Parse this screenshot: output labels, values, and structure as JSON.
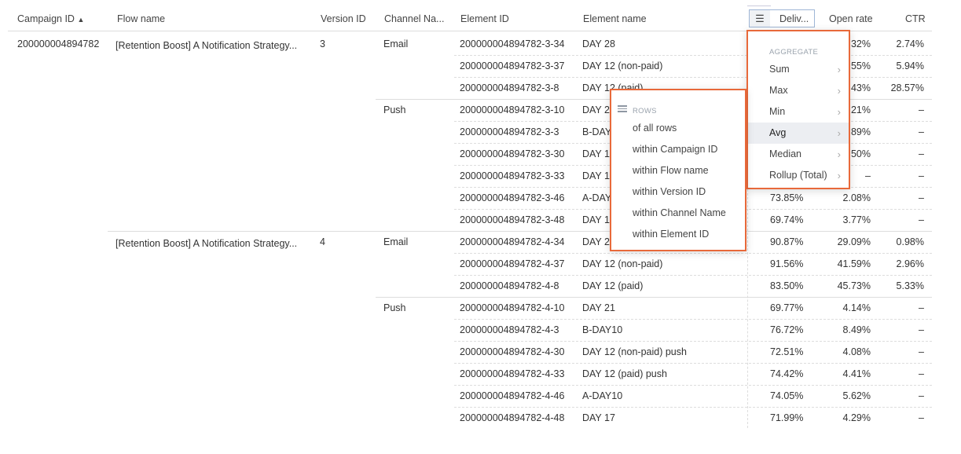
{
  "columns": {
    "campaign_id": "Campaign ID",
    "flow_name": "Flow name",
    "version_id": "Version ID",
    "channel_name": "Channel Na...",
    "element_id": "Element ID",
    "element_name": "Element name",
    "delivered": "Deliv...",
    "open_rate": "Open rate",
    "ctr": "CTR"
  },
  "sort_indicator": "▲",
  "campaign": "200000004894782",
  "versions": [
    {
      "flow_name": "[Retention Boost] A Notification Strategy...",
      "version_id": "3",
      "channels": [
        {
          "name": "Email",
          "start": 0
        },
        {
          "name": "Push",
          "start": 3
        }
      ]
    },
    {
      "flow_name": "[Retention Boost] A Notification Strategy...",
      "version_id": "4",
      "channels": [
        {
          "name": "Email",
          "start": 9
        },
        {
          "name": "Push",
          "start": 12
        }
      ]
    }
  ],
  "rows": [
    {
      "element_id": "200000004894782-3-34",
      "element_name": "DAY 28",
      "delivered": "",
      "open_rate": ".32%",
      "ctr": "2.74%"
    },
    {
      "element_id": "200000004894782-3-37",
      "element_name": "DAY 12 (non-paid)",
      "delivered": "",
      "open_rate": ".55%",
      "ctr": "5.94%"
    },
    {
      "element_id": "200000004894782-3-8",
      "element_name": "DAY 12 (paid)",
      "delivered": "",
      "open_rate": ".43%",
      "ctr": "28.57%"
    },
    {
      "element_id": "200000004894782-3-10",
      "element_name": "DAY 2",
      "delivered": "",
      "open_rate": ".21%",
      "ctr": "–"
    },
    {
      "element_id": "200000004894782-3-3",
      "element_name": "B-DAY",
      "delivered": "",
      "open_rate": ".89%",
      "ctr": "–"
    },
    {
      "element_id": "200000004894782-3-30",
      "element_name": "DAY 1",
      "delivered": "",
      "open_rate": ".50%",
      "ctr": "–"
    },
    {
      "element_id": "200000004894782-3-33",
      "element_name": "DAY 1",
      "delivered": "",
      "open_rate": "–",
      "ctr": "–"
    },
    {
      "element_id": "200000004894782-3-46",
      "element_name": "A-DAY",
      "delivered": "73.85%",
      "open_rate": "2.08%",
      "ctr": "–"
    },
    {
      "element_id": "200000004894782-3-48",
      "element_name": "DAY 1",
      "delivered": "69.74%",
      "open_rate": "3.77%",
      "ctr": "–"
    },
    {
      "element_id": "200000004894782-4-34",
      "element_name": "DAY 2",
      "delivered": "90.87%",
      "open_rate": "29.09%",
      "ctr": "0.98%"
    },
    {
      "element_id": "200000004894782-4-37",
      "element_name": "DAY 12 (non-paid)",
      "delivered": "91.56%",
      "open_rate": "41.59%",
      "ctr": "2.96%"
    },
    {
      "element_id": "200000004894782-4-8",
      "element_name": "DAY 12 (paid)",
      "delivered": "83.50%",
      "open_rate": "45.73%",
      "ctr": "5.33%"
    },
    {
      "element_id": "200000004894782-4-10",
      "element_name": "DAY 21",
      "delivered": "69.77%",
      "open_rate": "4.14%",
      "ctr": "–"
    },
    {
      "element_id": "200000004894782-4-3",
      "element_name": "B-DAY10",
      "delivered": "76.72%",
      "open_rate": "8.49%",
      "ctr": "–"
    },
    {
      "element_id": "200000004894782-4-30",
      "element_name": "DAY 12 (non-paid) push",
      "delivered": "72.51%",
      "open_rate": "4.08%",
      "ctr": "–"
    },
    {
      "element_id": "200000004894782-4-33",
      "element_name": "DAY 12 (paid) push",
      "delivered": "74.42%",
      "open_rate": "4.41%",
      "ctr": "–"
    },
    {
      "element_id": "200000004894782-4-46",
      "element_name": "A-DAY10",
      "delivered": "74.05%",
      "open_rate": "5.62%",
      "ctr": "–"
    },
    {
      "element_id": "200000004894782-4-48",
      "element_name": "DAY 17",
      "delivered": "71.99%",
      "open_rate": "4.29%",
      "ctr": "–"
    }
  ],
  "aggregate_menu": {
    "title": "AGGREGATE",
    "items": [
      "Sum",
      "Max",
      "Min",
      "Avg",
      "Median",
      "Rollup (Total)"
    ],
    "active": "Avg",
    "chevron": "›"
  },
  "rows_menu": {
    "title": "ROWS",
    "items": [
      "of all rows",
      "within Campaign ID",
      "within Flow name",
      "within Version ID",
      "within Channel Name",
      "within Element ID"
    ]
  },
  "colors": {
    "highlight": "#e8693a",
    "active_bg": "#eceef2"
  }
}
